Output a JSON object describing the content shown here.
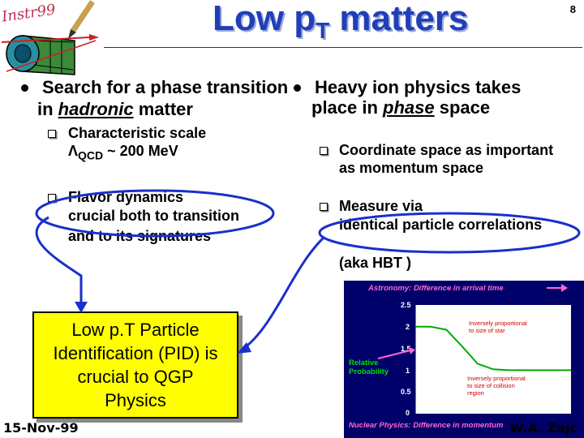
{
  "header": {
    "logo_text": "Instr99",
    "title_main": "Low p",
    "title_sub": "T",
    "title_rest": " matters",
    "page_number": "8"
  },
  "left": {
    "bullet_line1": "Search for a phase transition",
    "bullet_line2_pre": "in ",
    "bullet_line2_underlined": "hadronic",
    "bullet_line2_post": " matter",
    "sub1_line1": "Characteristic scale",
    "sub1_lambda": "Λ",
    "sub1_qcd": "QCD",
    "sub1_rest": " ~ 200 MeV",
    "sub2_line1": "Flavor dynamics",
    "sub2_line2": "crucial both to transition",
    "sub2_line3": "and to its signatures"
  },
  "right": {
    "bullet_line1": "Heavy ion physics takes",
    "bullet_line2_pre": "place in ",
    "bullet_line2_underlined": "phase",
    "bullet_line2_post": " space",
    "sub1_line1": "Coordinate space as important",
    "sub1_line2": "as momentum space",
    "sub2_line1": "Measure via",
    "sub2_line2": "identical particle correlations",
    "aka": "(aka HBT )"
  },
  "callout_box": {
    "line1": "Low p.T Particle",
    "line2": "Identification (PID) is",
    "line3": "crucial to QGP",
    "line4": "Physics"
  },
  "footer": {
    "date": "15-Nov-99",
    "author": "W.A. Zajc"
  },
  "figure": {
    "top_label": "Astronomy: Difference in arrival time",
    "bottom_label": "Nuclear Physics: Difference in momentum",
    "y_axis_label_line1": "Relative",
    "y_axis_label_line2": "Probability",
    "annotation_top_line1": "Inversely proportional",
    "annotation_top_line2": "to size of star",
    "annotation_bottom_line1": "Inversely proportional",
    "annotation_bottom_line2": "to size of collision",
    "annotation_bottom_line3": "region",
    "y_ticks": [
      "2.5",
      "2",
      "1.5",
      "1",
      "0.5",
      "0"
    ],
    "curve_color": "#00aa00",
    "background_color": "#00006b"
  },
  "chart_data": {
    "type": "line",
    "title": "",
    "xlabel": "Nuclear Physics: Difference in momentum",
    "ylabel": "Relative Probability",
    "ylim": [
      0,
      2.5
    ],
    "series": [
      {
        "x": [
          0,
          0.1,
          0.2,
          0.3,
          0.4,
          0.5,
          0.6,
          1.0
        ],
        "y": [
          2.0,
          2.0,
          1.93,
          1.55,
          1.15,
          1.02,
          1.0,
          1.0
        ]
      }
    ]
  }
}
